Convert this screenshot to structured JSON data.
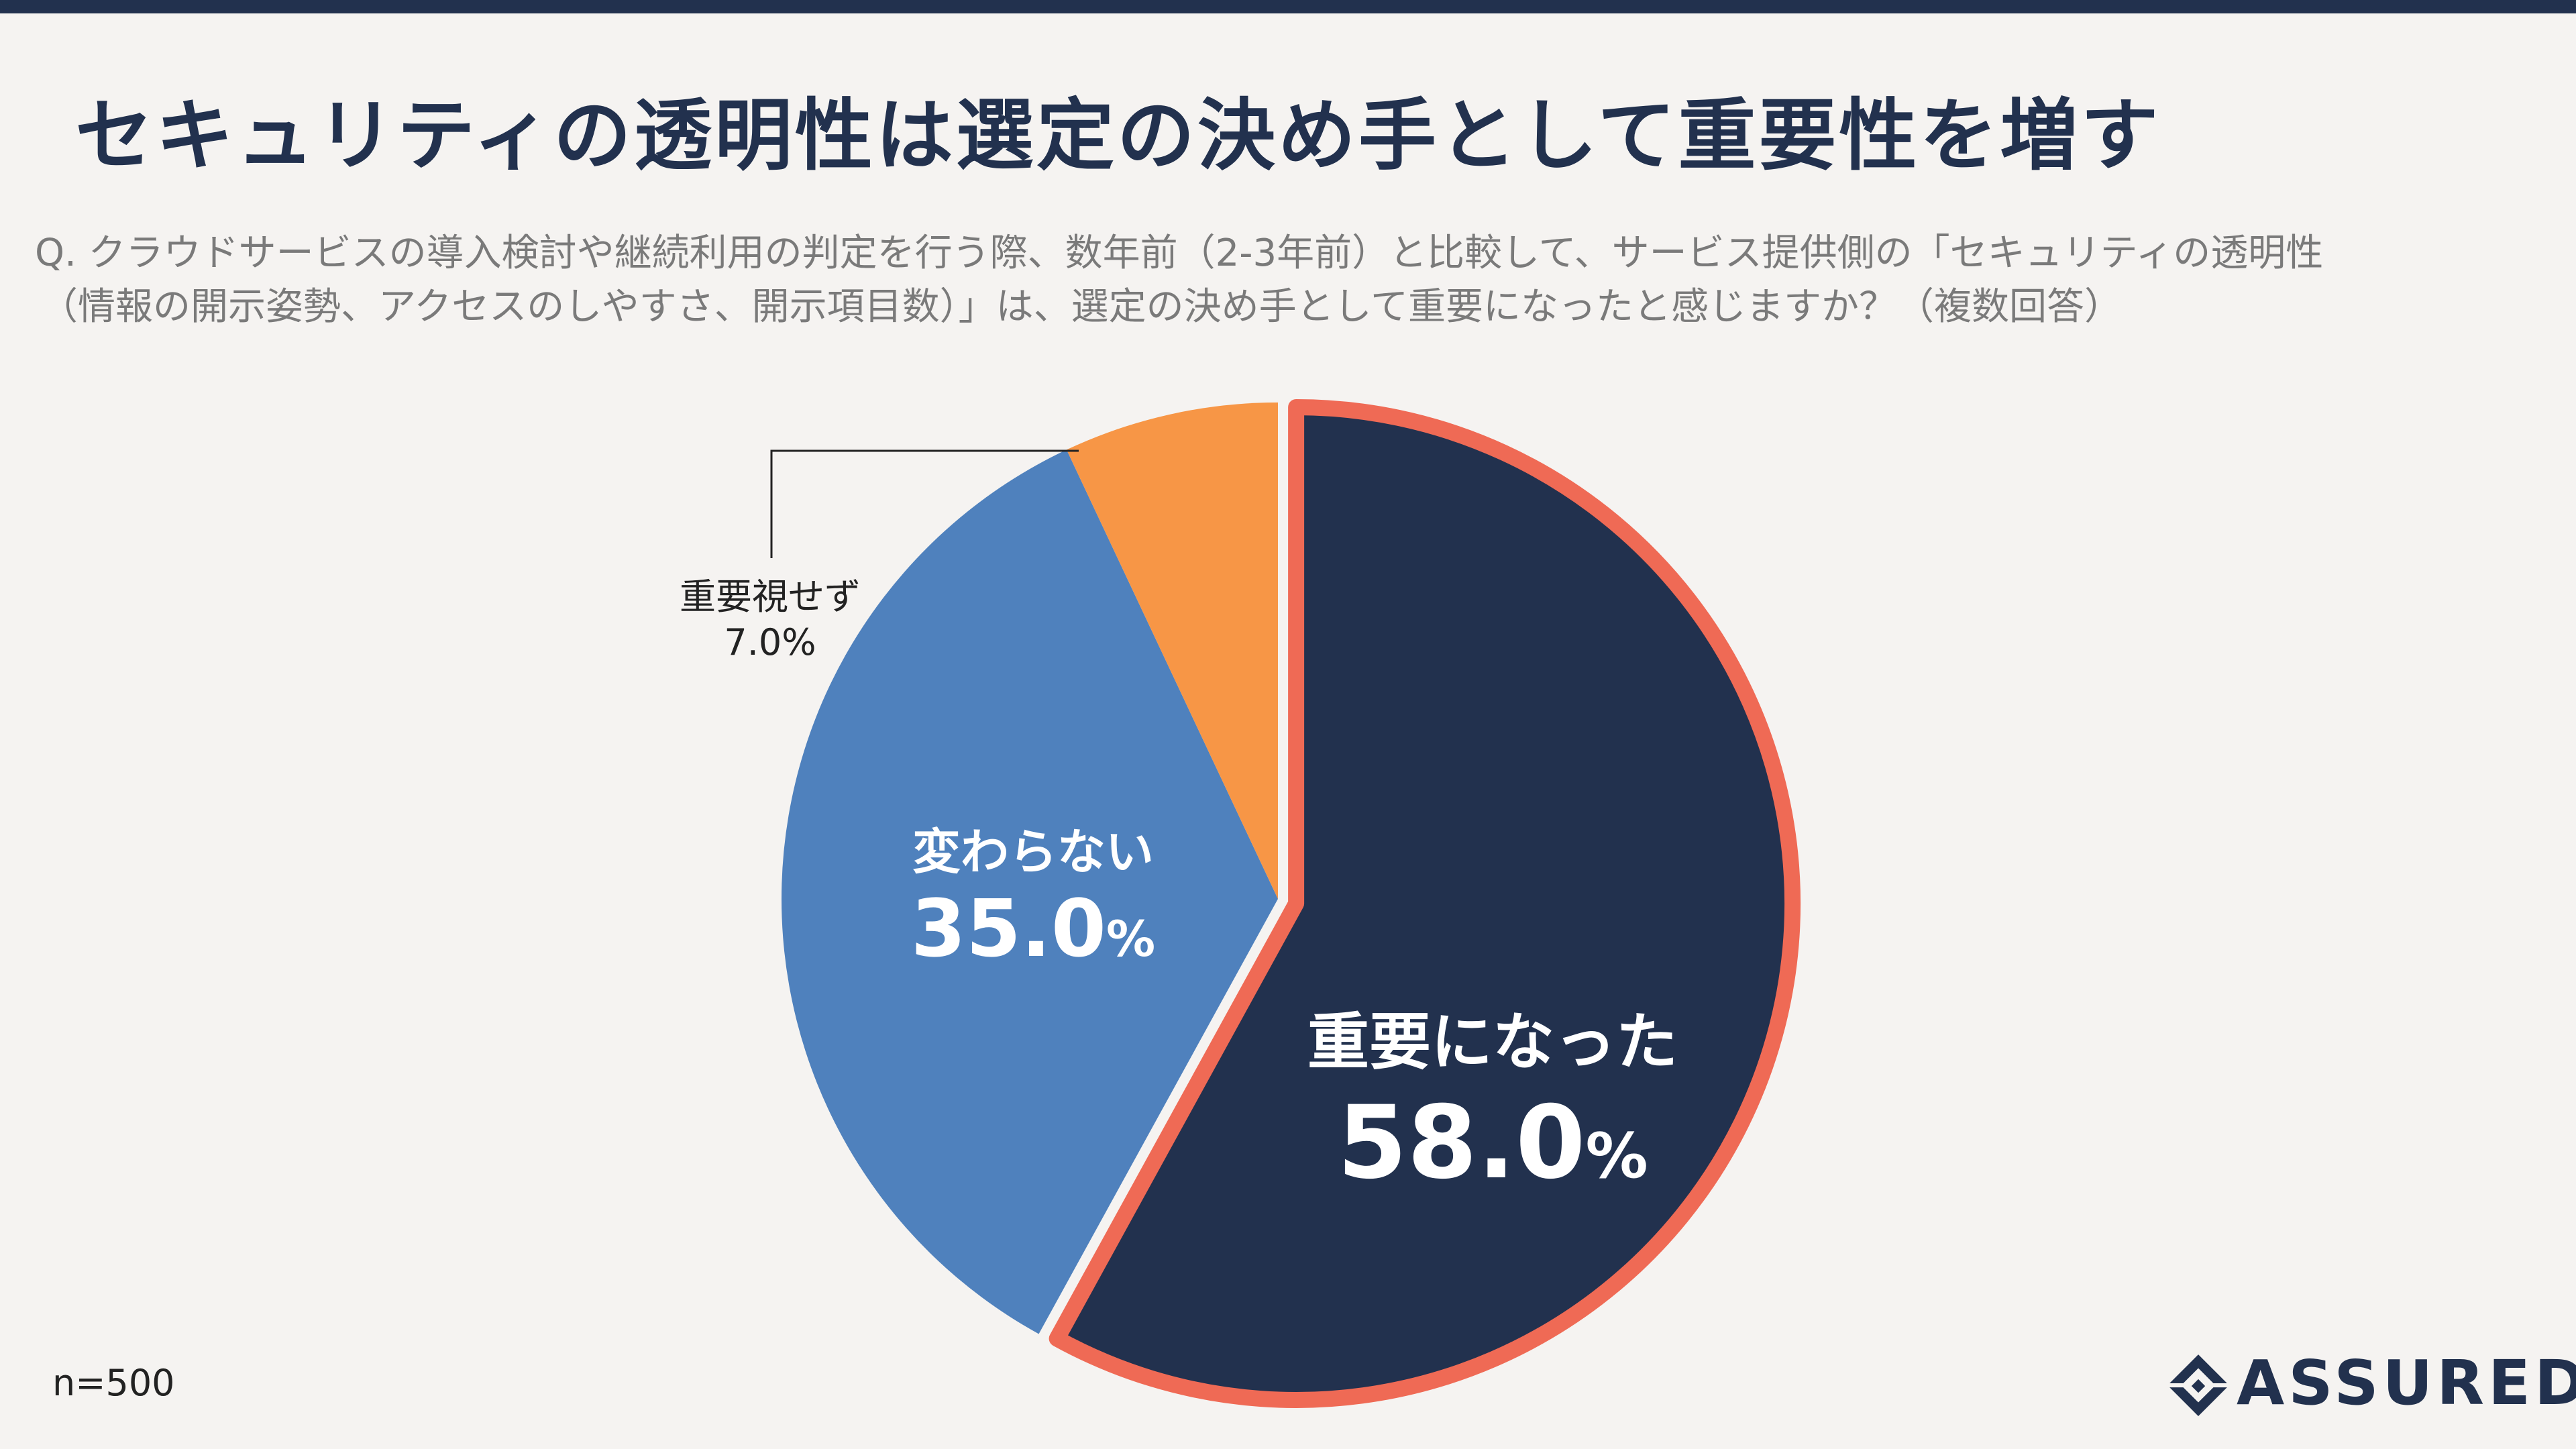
{
  "title": "セキュリティの透明性は選定の決め手として重要性を増す",
  "question": {
    "line1": "Q. クラウドサービスの導入検討や継続利用の判定を行う際、数年前（2-3年前）と比較して、サービス提供側の「セキュリティの透明性",
    "line2": "（情報の開示姿勢、アクセスのしやすさ、開示項目数）」は、選定の決め手として重要になったと感じますか？（複数回答）"
  },
  "sample_size": "n=500",
  "logo_text": "ASSURED",
  "colors": {
    "navy": "#22314e",
    "blue": "#4f81bd",
    "orange": "#f79646",
    "highlight": "#ef6a55",
    "background": "#f5f3f1"
  },
  "chart_data": {
    "type": "pie",
    "title": "",
    "start": "12 o'clock, clockwise",
    "slices": [
      {
        "label": "重要になった",
        "value": 58.0,
        "display": "58.0",
        "unit": "%",
        "color": "#22314e",
        "highlighted": true
      },
      {
        "label": "変わらない",
        "value": 35.0,
        "display": "35.0",
        "unit": "%",
        "color": "#4f81bd",
        "highlighted": false
      },
      {
        "label": "重要視せず",
        "value": 7.0,
        "display": "7.0%",
        "unit": "",
        "color": "#f79646",
        "highlighted": false
      }
    ]
  }
}
